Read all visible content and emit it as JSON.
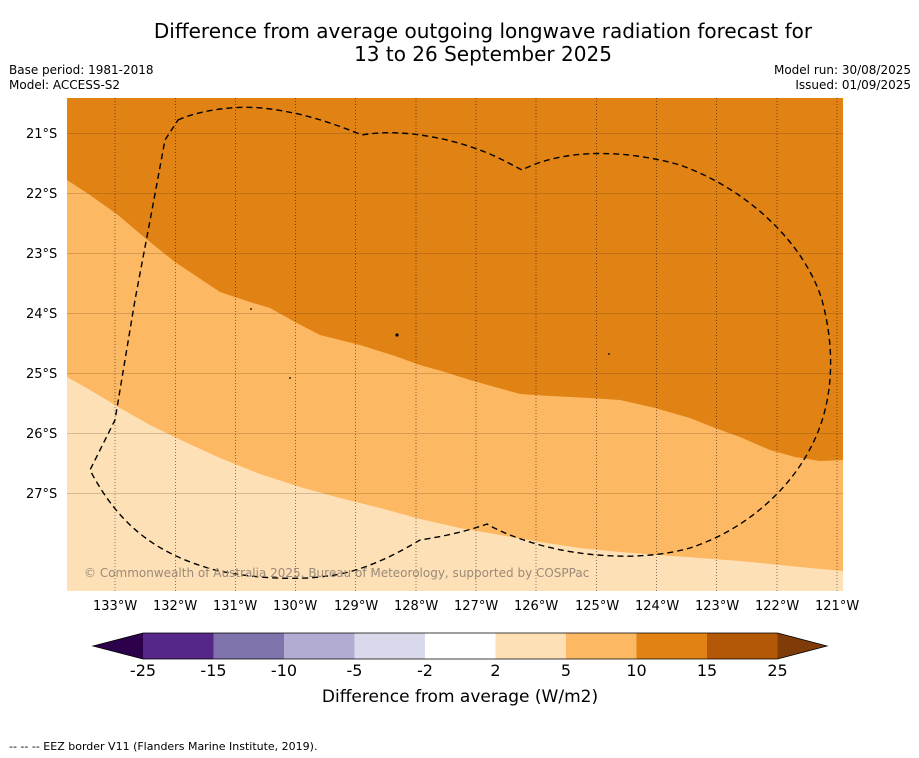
{
  "title_line1": "Difference from average outgoing longwave radiation forecast for",
  "title_line2": "13 to 26 September 2025",
  "base_period": "Base period: 1981-2018",
  "model": "Model: ACCESS-S2",
  "model_run": "Model run: 30/08/2025",
  "issued": "Issued: 01/09/2025",
  "copyright": "© Commonwealth of Australia 2025, Bureau of Meteorology, supported by COSPPac",
  "footnote": "--  --  -- EEZ border V11 (Flanders Marine Institute, 2019).",
  "latitudes": [
    "21°S",
    "22°S",
    "23°S",
    "24°S",
    "25°S",
    "26°S",
    "27°S"
  ],
  "longitudes": [
    "133°W",
    "132°W",
    "131°W",
    "130°W",
    "129°W",
    "128°W",
    "127°W",
    "126°W",
    "125°W",
    "124°W",
    "123°W",
    "122°W",
    "121°W"
  ],
  "colorbar": {
    "title": "Difference from average (W/m2)",
    "ticks": [
      "-25",
      "-15",
      "-10",
      "-5",
      "-2",
      "2",
      "5",
      "10",
      "15",
      "25"
    ],
    "colors": [
      "#2d004b",
      "#542788",
      "#8073ac",
      "#b2abd2",
      "#d8daeb",
      "#ffffff",
      "#fee0b6",
      "#fdb863",
      "#e08214",
      "#b35806",
      "#7f3b08"
    ]
  }
}
